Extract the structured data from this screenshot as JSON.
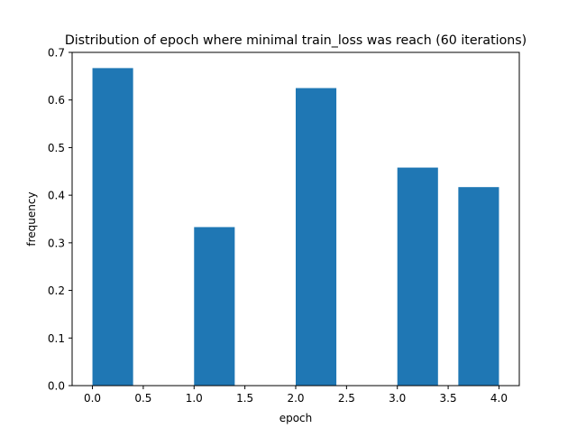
{
  "chart_data": {
    "type": "bar",
    "title": "Distribution of epoch where minimal train_loss was reach (60 iterations)",
    "xlabel": "epoch",
    "ylabel": "frequency",
    "xlim": [
      -0.2,
      4.2
    ],
    "ylim": [
      0,
      0.7
    ],
    "xticks": [
      "0.0",
      "0.5",
      "1.0",
      "1.5",
      "2.0",
      "2.5",
      "3.0",
      "3.5",
      "4.0"
    ],
    "yticks": [
      "0.0",
      "0.1",
      "0.2",
      "0.3",
      "0.4",
      "0.5",
      "0.6",
      "0.7"
    ],
    "grid": false,
    "bar_color": "#1f77b4",
    "bars": [
      {
        "x_start": 0.0,
        "x_end": 0.4,
        "value": 0.667
      },
      {
        "x_start": 1.0,
        "x_end": 1.4,
        "value": 0.333
      },
      {
        "x_start": 1.6,
        "x_end": 2.0,
        "value": 0.0
      },
      {
        "x_start": 2.0,
        "x_end": 2.4,
        "value": 0.625
      },
      {
        "x_start": 3.0,
        "x_end": 3.4,
        "value": 0.458
      },
      {
        "x_start": 3.6,
        "x_end": 4.0,
        "value": 0.417
      }
    ]
  }
}
